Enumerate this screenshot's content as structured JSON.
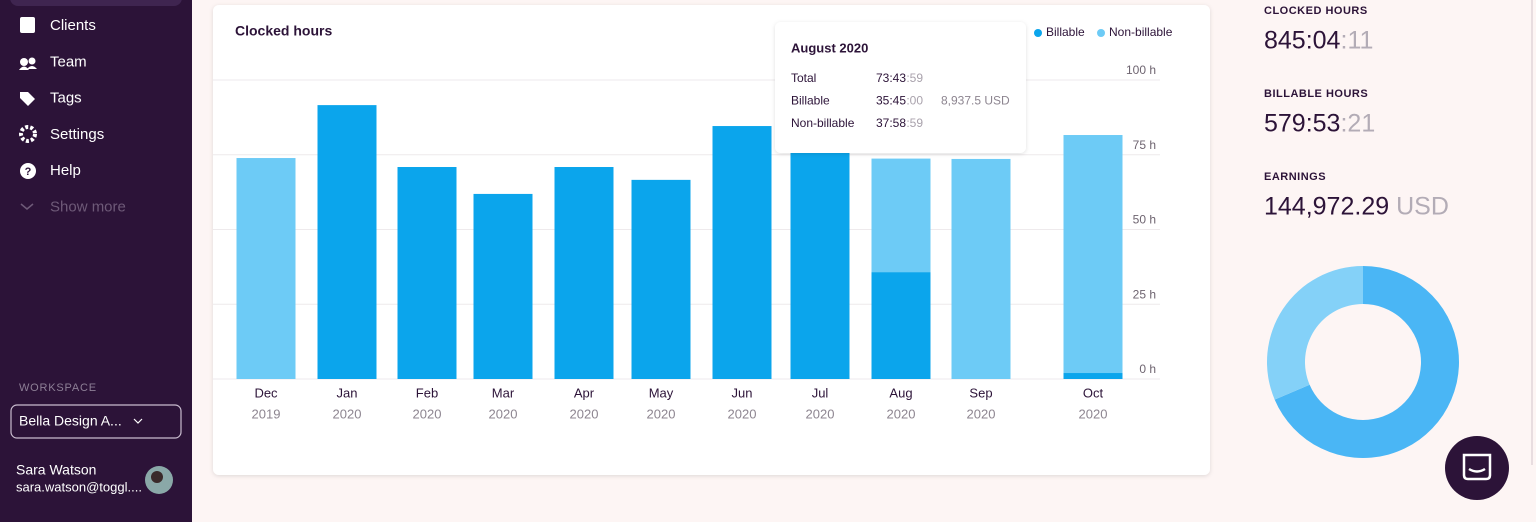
{
  "sidebar": {
    "items": [
      "Clients",
      "Team",
      "Tags",
      "Settings",
      "Help",
      "Show more"
    ],
    "workspace_label": "WORKSPACE",
    "workspace": "Bella Design A...",
    "user_name": "Sara Watson",
    "user_email": "sara.watson@toggl...."
  },
  "chart_data": {
    "type": "bar",
    "stacked": true,
    "title": "Clocked hours",
    "categories": [
      "Dec",
      "Jan",
      "Feb",
      "Mar",
      "Apr",
      "May",
      "Jun",
      "Jul",
      "Aug",
      "Sep",
      "Oct"
    ],
    "category_years": [
      "2019",
      "2020",
      "2020",
      "2020",
      "2020",
      "2020",
      "2020",
      "2020",
      "2020",
      "2020",
      "2020"
    ],
    "series": [
      {
        "name": "Billable",
        "color": "#0ba5ec",
        "values": [
          0,
          91.6,
          70.9,
          61.9,
          70.9,
          66.6,
          84.6,
          80,
          35.75,
          0,
          2
        ]
      },
      {
        "name": "Non-billable",
        "color": "#6dcbf6",
        "values": [
          73.9,
          0,
          0,
          0,
          0,
          0,
          0,
          0,
          37.97,
          73.6,
          79.6
        ]
      }
    ],
    "ylim": [
      0,
      100
    ],
    "yticks": [
      {
        "value": 0,
        "label": "0 h"
      },
      {
        "value": 25,
        "label": "25 h"
      },
      {
        "value": 50,
        "label": "50 h"
      },
      {
        "value": 75,
        "label": "75 h"
      },
      {
        "value": 100,
        "label": "100 h"
      }
    ],
    "grid": true,
    "legend": "top-right"
  },
  "tooltip": {
    "title": "August 2020",
    "rows": [
      {
        "label": "Total",
        "time": "73:43",
        "seconds": ":59"
      },
      {
        "label": "Billable",
        "time": "35:45",
        "seconds": ":00",
        "amount": "8,937.5 USD"
      },
      {
        "label": "Non-billable",
        "time": "37:58",
        "seconds": ":59"
      }
    ]
  },
  "stats": [
    {
      "label": "CLOCKED HOURS",
      "value": "845:04",
      "suffix": ":11"
    },
    {
      "label": "BILLABLE HOURS",
      "value": "579:53",
      "suffix": ":21"
    },
    {
      "label": "EARNINGS",
      "value": "144,972.29",
      "suffix": "USD"
    }
  ],
  "donut": {
    "type": "pie",
    "values": [
      68.6,
      31.4
    ],
    "colors": [
      "#4ab6f5",
      "#84d1f8"
    ]
  }
}
